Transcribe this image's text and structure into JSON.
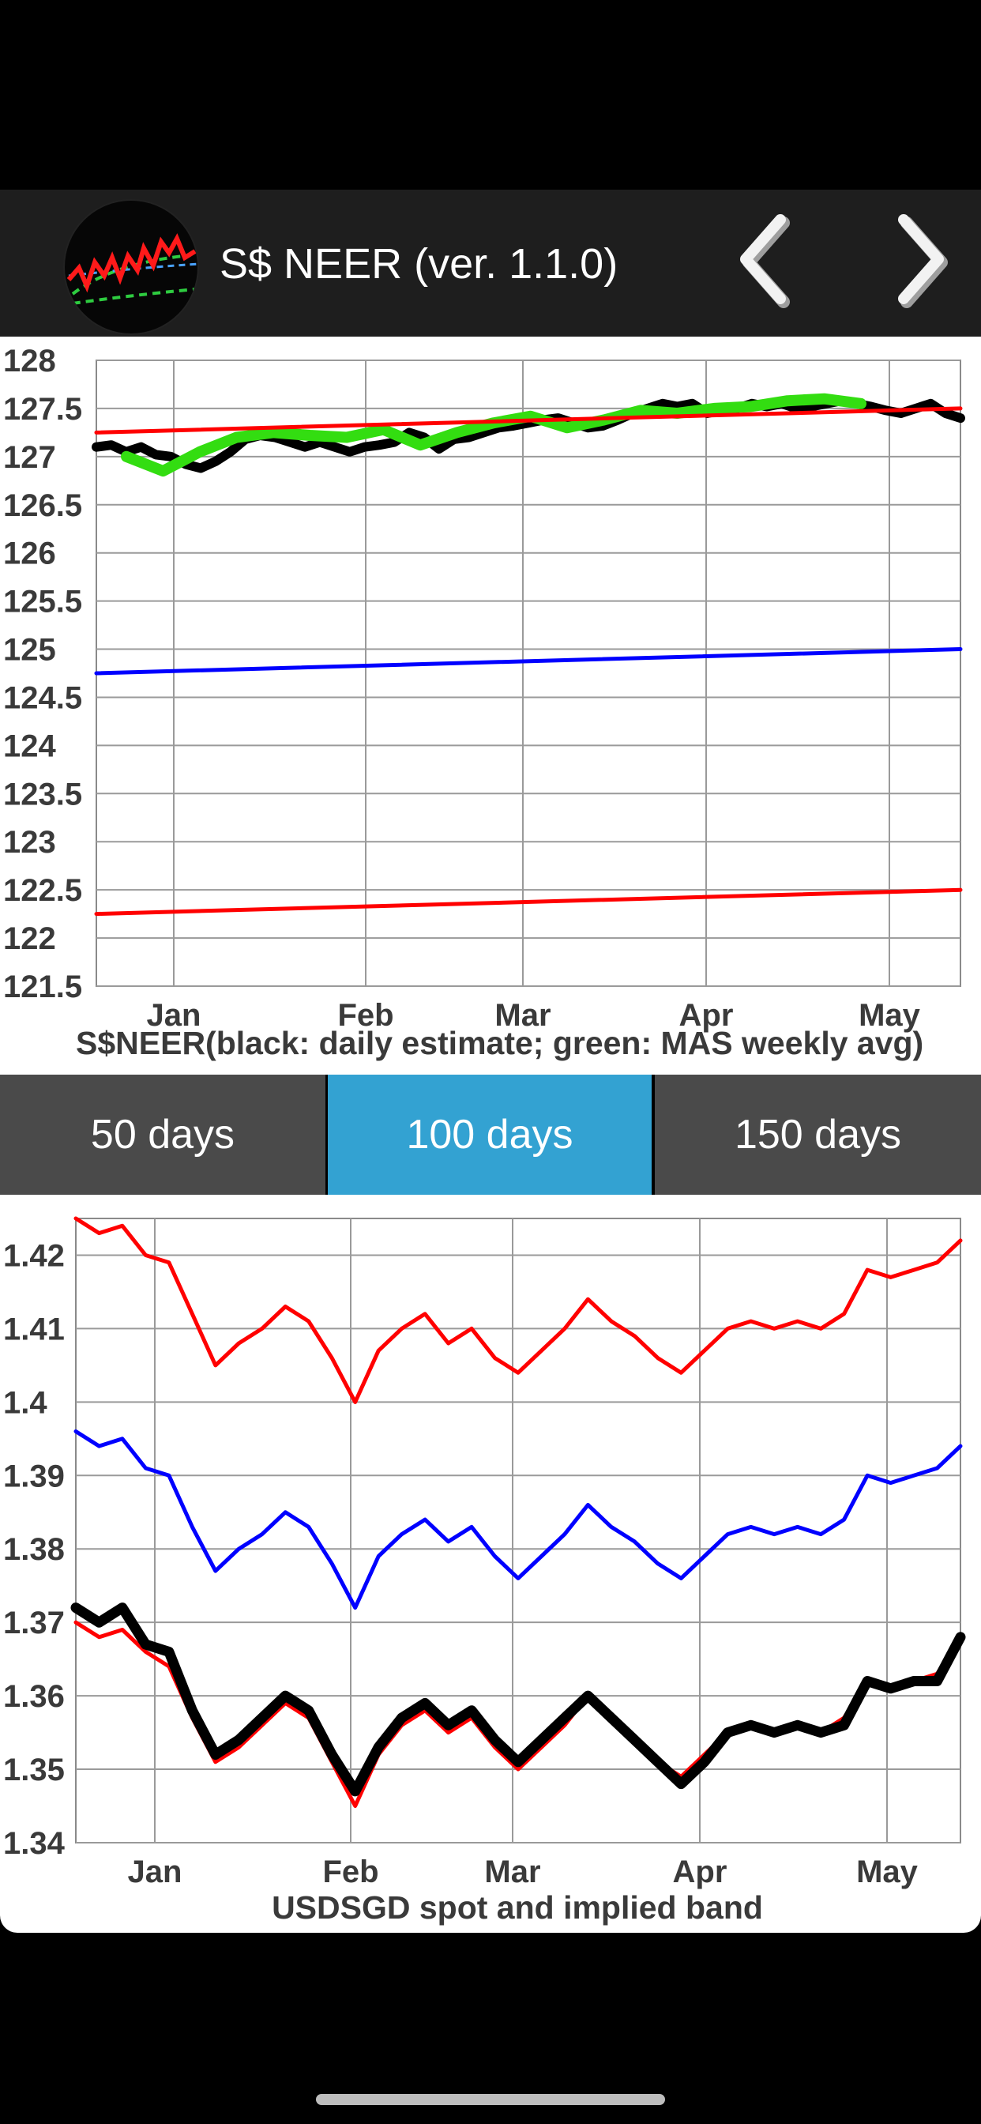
{
  "header": {
    "title": "S$ NEER (ver. 1.1.0)",
    "app_icon": "chart-logo-icon",
    "prev_icon": "chevron-left-icon",
    "next_icon": "chevron-right-icon"
  },
  "tabs": [
    {
      "label": "50 days",
      "selected": false
    },
    {
      "label": "100 days",
      "selected": true
    },
    {
      "label": "150 days",
      "selected": false
    }
  ],
  "colors": {
    "selected_tab": "#33a2d2",
    "tab": "#4a4a4a",
    "header": "#1e1e1e"
  },
  "chart_data": [
    {
      "type": "line",
      "title": "S$NEER(black: daily estimate; green: MAS weekly avg)",
      "x_tick_labels": [
        "Jan",
        "Feb",
        "Mar",
        "Apr",
        "May"
      ],
      "y_ticks": [
        "128",
        "127.5",
        "127",
        "126.5",
        "126",
        "125.5",
        "125",
        "124.5",
        "124",
        "123.5",
        "123",
        "122.5",
        "122",
        "121.5"
      ],
      "ylim": [
        121.5,
        128
      ],
      "grid": true,
      "series": [
        {
          "color": "#000000",
          "description_from_title": "daily estimate",
          "values": [
            127.1,
            127.12,
            127.05,
            127.1,
            127.02,
            127.0,
            126.92,
            126.88,
            126.95,
            127.05,
            127.18,
            127.22,
            127.2,
            127.15,
            127.1,
            127.15,
            127.1,
            127.05,
            127.1,
            127.12,
            127.15,
            127.25,
            127.2,
            127.08,
            127.18,
            127.2,
            127.25,
            127.3,
            127.32,
            127.35,
            127.38,
            127.4,
            127.35,
            127.3,
            127.32,
            127.38,
            127.45,
            127.5,
            127.55,
            127.52,
            127.55,
            127.45,
            127.48,
            127.5,
            127.55,
            127.52,
            127.55,
            127.5,
            127.52,
            127.55,
            127.58,
            127.55,
            127.52,
            127.48,
            127.45,
            127.5,
            127.55,
            127.45,
            127.4
          ]
        },
        {
          "color": "#33dd11",
          "description_from_title": "MAS weekly avg",
          "values": [
            127.0,
            126.85,
            127.05,
            127.2,
            127.25,
            127.22,
            127.2,
            127.28,
            127.12,
            127.25,
            127.35,
            127.42,
            127.3,
            127.38,
            127.48,
            127.45,
            127.5,
            127.52,
            127.58,
            127.6,
            127.55
          ]
        },
        {
          "color": "#ff0000",
          "values_start_end": [
            127.25,
            127.5
          ]
        },
        {
          "color": "#0000ff",
          "values_start_end": [
            124.75,
            125.0
          ]
        },
        {
          "color": "#ff0000",
          "values_start_end": [
            122.25,
            122.5
          ]
        }
      ]
    },
    {
      "type": "line",
      "title": "USDSGD spot and implied band",
      "x_tick_labels": [
        "Jan",
        "Feb",
        "Mar",
        "Apr",
        "May"
      ],
      "y_ticks": [
        "1.42",
        "1.41",
        "1.4",
        "1.39",
        "1.38",
        "1.37",
        "1.36",
        "1.35",
        "1.34"
      ],
      "ylim": [
        1.34,
        1.425
      ],
      "grid": true,
      "series": [
        {
          "color": "#ff0000",
          "values": [
            1.425,
            1.423,
            1.424,
            1.42,
            1.419,
            1.412,
            1.405,
            1.408,
            1.41,
            1.413,
            1.411,
            1.406,
            1.4,
            1.407,
            1.41,
            1.412,
            1.408,
            1.41,
            1.406,
            1.404,
            1.407,
            1.41,
            1.414,
            1.411,
            1.409,
            1.406,
            1.404,
            1.407,
            1.41,
            1.411,
            1.41,
            1.411,
            1.41,
            1.412,
            1.418,
            1.417,
            1.418,
            1.419,
            1.422
          ]
        },
        {
          "color": "#0000ff",
          "values": [
            1.396,
            1.394,
            1.395,
            1.391,
            1.39,
            1.383,
            1.377,
            1.38,
            1.382,
            1.385,
            1.383,
            1.378,
            1.372,
            1.379,
            1.382,
            1.384,
            1.381,
            1.383,
            1.379,
            1.376,
            1.379,
            1.382,
            1.386,
            1.383,
            1.381,
            1.378,
            1.376,
            1.379,
            1.382,
            1.383,
            1.382,
            1.383,
            1.382,
            1.384,
            1.39,
            1.389,
            1.39,
            1.391,
            1.394
          ]
        },
        {
          "color": "#ff0000",
          "values": [
            1.37,
            1.368,
            1.369,
            1.366,
            1.364,
            1.357,
            1.351,
            1.353,
            1.356,
            1.359,
            1.357,
            1.351,
            1.345,
            1.352,
            1.356,
            1.358,
            1.355,
            1.357,
            1.353,
            1.35,
            1.353,
            1.356,
            1.36,
            1.357,
            1.354,
            1.351,
            1.349,
            1.352,
            1.355,
            1.356,
            1.355,
            1.356,
            1.355,
            1.357,
            1.362,
            1.361,
            1.362,
            1.363,
            1.368
          ]
        },
        {
          "color": "#000000",
          "values": [
            1.372,
            1.37,
            1.372,
            1.367,
            1.366,
            1.358,
            1.352,
            1.354,
            1.357,
            1.36,
            1.358,
            1.352,
            1.347,
            1.353,
            1.357,
            1.359,
            1.356,
            1.358,
            1.354,
            1.351,
            1.354,
            1.357,
            1.36,
            1.357,
            1.354,
            1.351,
            1.348,
            1.351,
            1.355,
            1.356,
            1.355,
            1.356,
            1.355,
            1.356,
            1.362,
            1.361,
            1.362,
            1.362,
            1.368
          ]
        }
      ]
    }
  ]
}
